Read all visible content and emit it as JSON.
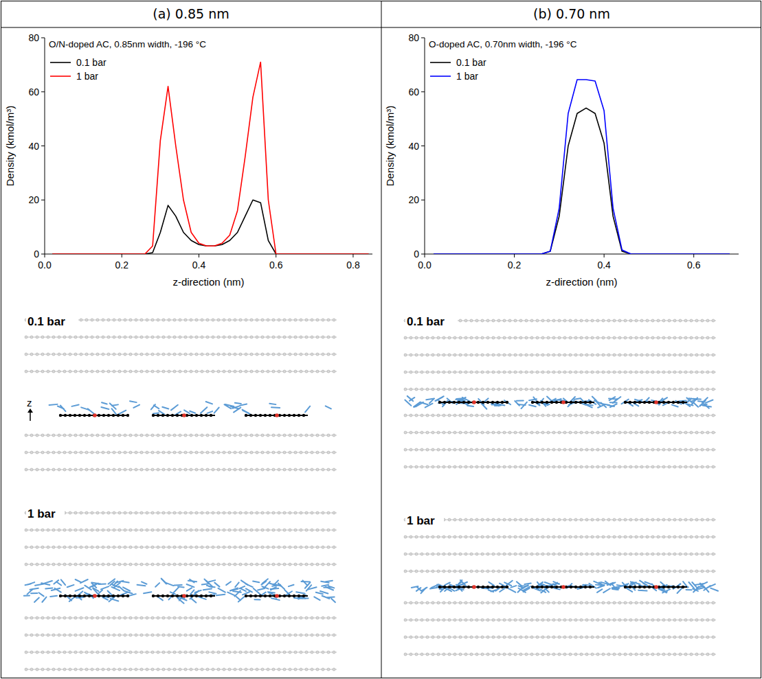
{
  "header": {
    "columns": [
      "(a) 0.85 nm",
      "(b) 0.70 nm"
    ]
  },
  "chart_data": [
    {
      "type": "line",
      "title": "O/N-doped AC, 0.85nm width, -196 °C",
      "x_label": "z-direction (nm)",
      "y_label": "Density (kmol/m³)",
      "x": [
        0.02,
        0.04,
        0.06,
        0.08,
        0.1,
        0.12,
        0.14,
        0.16,
        0.18,
        0.2,
        0.22,
        0.24,
        0.26,
        0.28,
        0.3,
        0.32,
        0.34,
        0.36,
        0.38,
        0.4,
        0.42,
        0.44,
        0.46,
        0.48,
        0.5,
        0.52,
        0.54,
        0.56,
        0.58,
        0.6,
        0.62,
        0.64,
        0.66,
        0.68,
        0.7,
        0.72,
        0.74,
        0.76,
        0.78,
        0.8,
        0.82,
        0.84
      ],
      "series": [
        {
          "name": "0.1 bar",
          "color": "#000000",
          "values": [
            0,
            0,
            0,
            0,
            0,
            0,
            0,
            0,
            0,
            0,
            0,
            0,
            0,
            0.5,
            8,
            18,
            14,
            8,
            5,
            3.5,
            3,
            3,
            3.5,
            5,
            8,
            14,
            20,
            19,
            5,
            0,
            0,
            0,
            0,
            0,
            0,
            0,
            0,
            0,
            0,
            0,
            0,
            0
          ]
        },
        {
          "name": "1 bar",
          "color": "#ff0000",
          "values": [
            0,
            0,
            0,
            0,
            0,
            0,
            0,
            0,
            0,
            0,
            0,
            0,
            0,
            3,
            42,
            62,
            40,
            20,
            8,
            4,
            3,
            3,
            4,
            7,
            16,
            36,
            58,
            71,
            20,
            0,
            0,
            0,
            0,
            0,
            0,
            0,
            0,
            0,
            0,
            0,
            0,
            0
          ]
        }
      ],
      "xlim": [
        0,
        0.85
      ],
      "ylim": [
        0,
        80
      ],
      "xticks": [
        {
          "value": 0,
          "label": "0.0"
        },
        {
          "value": 0.2,
          "label": "0.2"
        },
        {
          "value": 0.4,
          "label": "0.4"
        },
        {
          "value": 0.6,
          "label": "0.6"
        },
        {
          "value": 0.8,
          "label": "0.8"
        }
      ],
      "yticks": [
        0,
        20,
        40,
        60,
        80
      ],
      "legend": "upper left"
    },
    {
      "type": "line",
      "title": "O-doped AC, 0.70nm width, -196 °C",
      "x_label": "z-direction (nm)",
      "y_label": "Density (kmol/m³)",
      "x": [
        0.02,
        0.04,
        0.06,
        0.08,
        0.1,
        0.12,
        0.14,
        0.16,
        0.18,
        0.2,
        0.22,
        0.24,
        0.26,
        0.28,
        0.3,
        0.32,
        0.34,
        0.36,
        0.38,
        0.4,
        0.42,
        0.44,
        0.46,
        0.48,
        0.5,
        0.52,
        0.54,
        0.56,
        0.58,
        0.6,
        0.62,
        0.64,
        0.66,
        0.68
      ],
      "series": [
        {
          "name": "0.1 bar",
          "color": "#000000",
          "values": [
            0,
            0,
            0,
            0,
            0,
            0,
            0,
            0,
            0,
            0,
            0,
            0,
            0,
            1,
            14,
            40,
            52,
            54,
            52,
            41,
            14,
            1,
            0,
            0,
            0,
            0,
            0,
            0,
            0,
            0,
            0,
            0,
            0,
            0
          ]
        },
        {
          "name": "1 bar",
          "color": "#0000ff",
          "values": [
            0,
            0,
            0,
            0,
            0,
            0,
            0,
            0,
            0,
            0,
            0,
            0,
            0,
            1,
            17,
            52,
            64.5,
            64.5,
            64,
            53,
            17,
            1.5,
            0,
            0,
            0,
            0,
            0,
            0,
            0,
            0,
            0,
            0,
            0,
            0
          ]
        }
      ],
      "xlim": [
        0,
        0.7
      ],
      "ylim": [
        0,
        80
      ],
      "xticks": [
        {
          "value": 0,
          "label": "0.0"
        },
        {
          "value": 0.2,
          "label": "0.2"
        },
        {
          "value": 0.4,
          "label": "0.4"
        },
        {
          "value": 0.6,
          "label": "0.6"
        }
      ],
      "yticks": [
        0,
        20,
        40,
        60,
        80
      ],
      "legend": "upper left"
    }
  ],
  "snapshots": {
    "labels": [
      "0.1 bar",
      "1 bar"
    ],
    "axis": "z"
  }
}
